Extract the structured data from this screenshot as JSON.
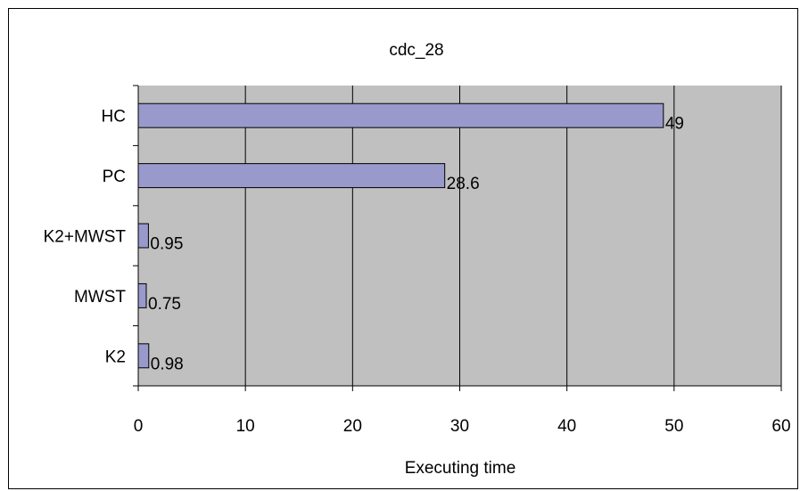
{
  "chart_data": {
    "type": "bar",
    "orientation": "horizontal",
    "title": "cdc_28",
    "xlabel": "Executing time",
    "ylabel": "",
    "categories": [
      "HC",
      "PC",
      "K2+MWST",
      "MWST",
      "K2"
    ],
    "values": [
      49,
      28.6,
      0.95,
      0.75,
      0.98
    ],
    "data_labels": [
      "49",
      "28.6",
      "0.95",
      "0.75",
      "0.98"
    ],
    "xlim": [
      0,
      60
    ],
    "x_ticks": [
      0,
      10,
      20,
      30,
      40,
      50,
      60
    ],
    "x_tick_labels": [
      "0",
      "10",
      "20",
      "30",
      "40",
      "50",
      "60"
    ],
    "grid": "vertical",
    "legend": "none",
    "colors": {
      "bar_fill": "#9999cc",
      "bar_stroke": "#000000",
      "plot_background": "#c0c0c0",
      "gridline": "#000000"
    }
  }
}
